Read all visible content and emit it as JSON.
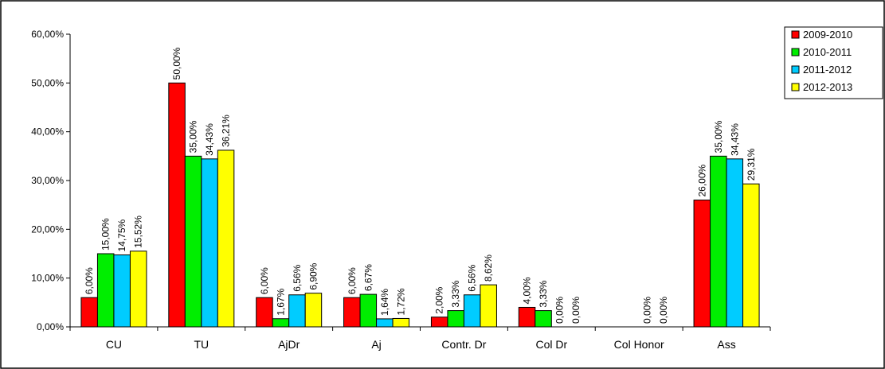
{
  "chart_data": {
    "type": "bar",
    "title": "",
    "xlabel": "",
    "ylabel": "",
    "ylim": [
      0,
      60
    ],
    "y_ticks": [
      "0,00%",
      "10,00%",
      "20,00%",
      "30,00%",
      "40,00%",
      "50,00%",
      "60,00%"
    ],
    "categories": [
      "CU",
      "TU",
      "AjDr",
      "Aj",
      "Contr. Dr",
      "Col Dr",
      "Col Honor",
      "Ass"
    ],
    "series": [
      {
        "name": "2009-2010",
        "color": "#ff0000",
        "values": [
          6.0,
          50.0,
          6.0,
          6.0,
          2.0,
          4.0,
          null,
          26.0
        ],
        "labels": [
          "6,00%",
          "50,00%",
          "6,00%",
          "6,00%",
          "2,00%",
          "4,00%",
          "",
          "26,00%"
        ]
      },
      {
        "name": "2010-2011",
        "color": "#00ee00",
        "values": [
          15.0,
          35.0,
          1.67,
          6.67,
          3.33,
          3.33,
          null,
          35.0
        ],
        "labels": [
          "15,00%",
          "35,00%",
          "1,67%",
          "6,67%",
          "3,33%",
          "3,33%",
          "",
          "35,00%"
        ]
      },
      {
        "name": "2011-2012",
        "color": "#00ccff",
        "values": [
          14.75,
          34.43,
          6.56,
          1.64,
          6.56,
          0.0,
          0.0,
          34.43
        ],
        "labels": [
          "14,75%",
          "34,43%",
          "6,56%",
          "1,64%",
          "6,56%",
          "0,00%",
          "0,00%",
          "34,43%"
        ]
      },
      {
        "name": "2012-2013",
        "color": "#ffff00",
        "values": [
          15.52,
          36.21,
          6.9,
          1.72,
          8.62,
          0.0,
          0.0,
          29.31
        ],
        "labels": [
          "15,52%",
          "36,21%",
          "6,90%",
          "1,72%",
          "8,62%",
          "0,00%",
          "0,00%",
          "29,31%"
        ]
      }
    ],
    "legend": {
      "position": "top-right",
      "items": [
        "2009-2010",
        "2010-2011",
        "2011-2012",
        "2012-2013"
      ]
    },
    "grid": false
  }
}
